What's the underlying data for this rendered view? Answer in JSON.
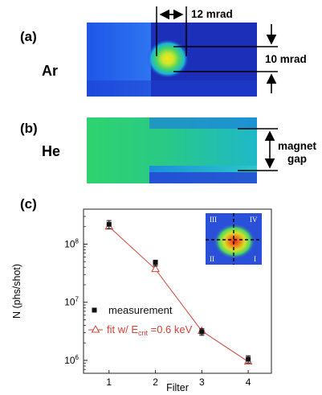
{
  "panels": {
    "a": {
      "label": "(a)",
      "gas": "Ar",
      "width_label": "12 mrad",
      "height_label": "10 mrad"
    },
    "b": {
      "label": "(b)",
      "gas": "He",
      "gap_label_line1": "magnet",
      "gap_label_line2": "gap"
    },
    "c": {
      "label": "(c)"
    }
  },
  "chart_data": {
    "type": "scatter",
    "xlabel": "Filter",
    "ylabel": "N (phs/shot)",
    "ylog": true,
    "xlim": [
      0.45,
      4.5
    ],
    "ylim": [
      600000,
      400000000
    ],
    "x_ticks": [
      1,
      2,
      3,
      4
    ],
    "x_tick_labels": [
      "1",
      "2",
      "3",
      "4"
    ],
    "y_ticks": [
      1000000,
      10000000,
      100000000
    ],
    "series": [
      {
        "name": "measurement",
        "marker": "filled-square",
        "color": "#111111",
        "x": [
          1,
          2,
          3,
          4
        ],
        "y": [
          220000000,
          48000000,
          3100000,
          1050000
        ],
        "y_err_low": [
          185000000,
          42000000,
          2700000,
          900000
        ],
        "y_err_high": [
          255000000,
          53000000,
          3500000,
          1200000
        ]
      },
      {
        "name": "fit w/ E_crit =0.6 keV",
        "marker": "open-triangle",
        "color": "#d0433a",
        "x": [
          1,
          2,
          3,
          4
        ],
        "y": [
          200000000,
          37000000,
          3200000,
          950000
        ]
      }
    ],
    "legend": {
      "measurement_label": "measurement",
      "fit_prefix": "fit w/ E",
      "fit_subscript": "crit",
      "fit_suffix": " =0.6 keV",
      "position": "bottom-left"
    },
    "inset": {
      "quadrants": [
        "III",
        "IV",
        "II",
        "I"
      ],
      "colors": {
        "background": "#2a4fd8",
        "spot_outer": "#7ad94a",
        "spot_core": "#e22a1a"
      }
    }
  }
}
